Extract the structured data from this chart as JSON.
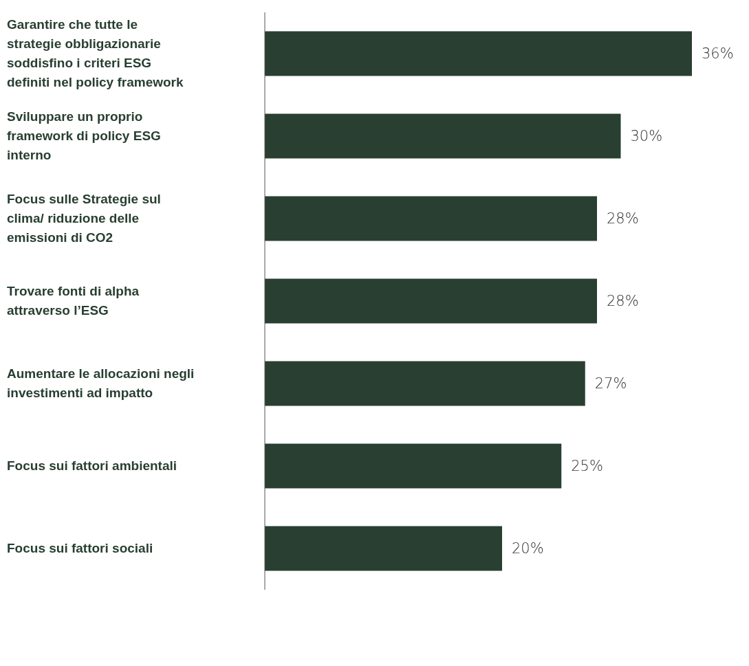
{
  "chart_data": {
    "type": "bar",
    "orientation": "horizontal",
    "categories": [
      "Garantire che tutte le strategie obbligazionarie soddisfino i criteri ESG definiti nel policy framework",
      "Sviluppare un proprio framework di policy ESG interno",
      "Focus sulle Strategie sul clima/ riduzione delle emissioni di CO2",
      "Trovare fonti di alpha attraverso l’ESG",
      "Aumentare le allocazioni negli investimenti ad impatto",
      "Focus sui fattori ambientali",
      "Focus sui fattori sociali"
    ],
    "values": [
      36,
      30,
      28,
      28,
      27,
      25,
      20
    ],
    "value_labels": [
      "36%",
      "30%",
      "28%",
      "28%",
      "27%",
      "25%",
      "20%"
    ],
    "color": "#283f31",
    "grid": false,
    "legend": false
  }
}
